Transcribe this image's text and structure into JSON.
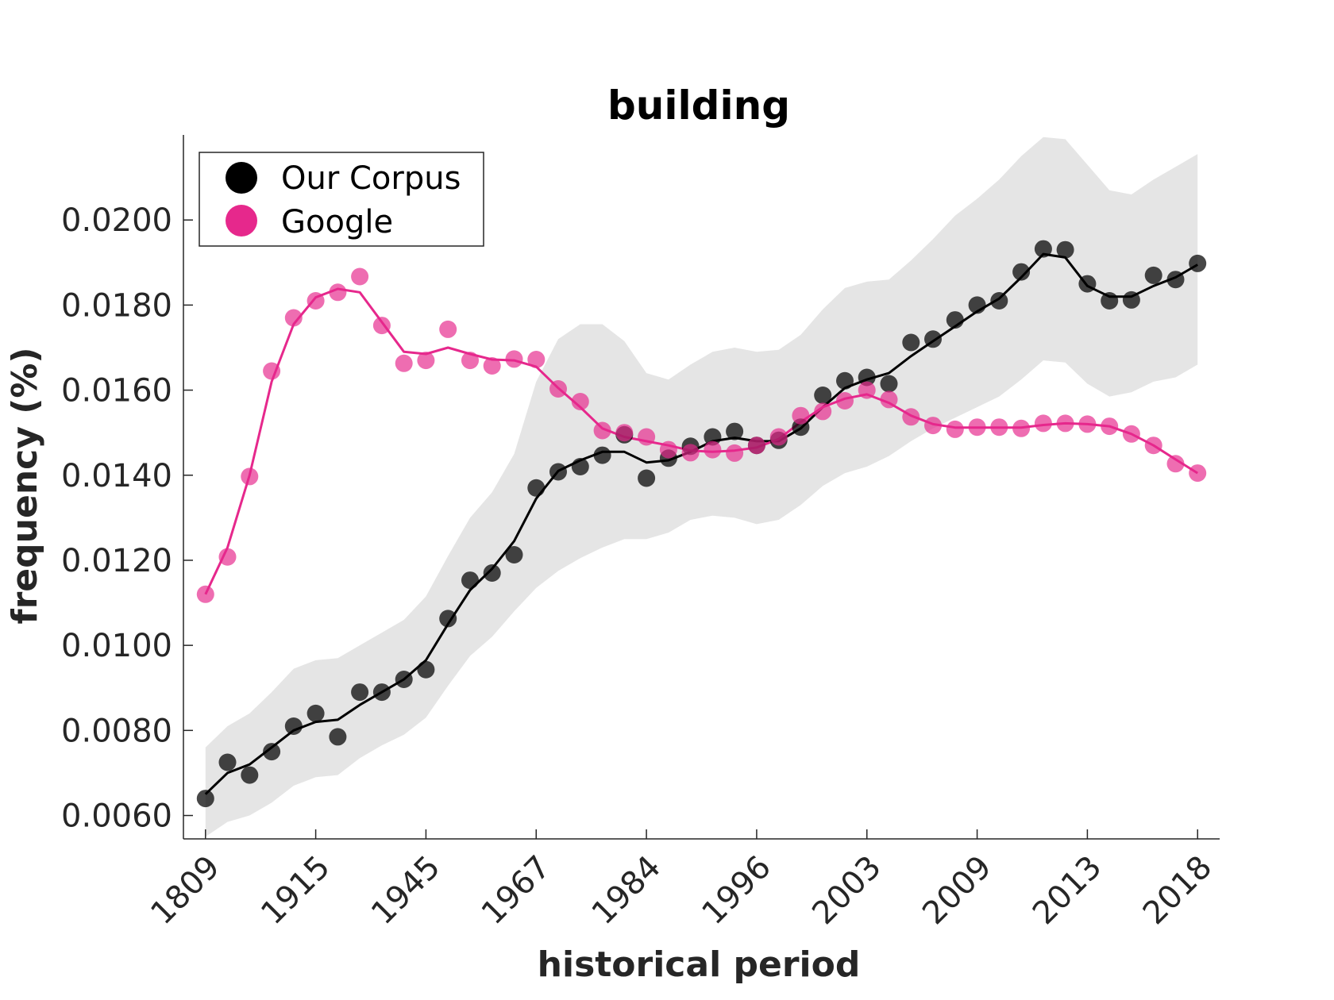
{
  "chart_data": {
    "type": "line",
    "title": "building",
    "xlabel": "historical period",
    "ylabel": "frequency (%)",
    "x_tick_labels": [
      "1809",
      "1915",
      "1945",
      "1967",
      "1984",
      "1996",
      "2003",
      "2009",
      "2013",
      "2018"
    ],
    "x_tick_positions": [
      0,
      5,
      10,
      15,
      20,
      25,
      30,
      35,
      40,
      45
    ],
    "xlim": [
      -1,
      46
    ],
    "y_tick_labels": [
      "0.0060",
      "0.0080",
      "0.0100",
      "0.0120",
      "0.0140",
      "0.0160",
      "0.0180",
      "0.0200"
    ],
    "y_ticks": [
      0.006,
      0.008,
      0.01,
      0.012,
      0.014,
      0.016,
      0.018,
      0.02
    ],
    "ylim": [
      0.00545,
      0.022
    ],
    "legend_position": "top-left",
    "x": [
      0,
      1,
      2,
      3,
      4,
      5,
      6,
      7,
      8,
      9,
      10,
      11,
      12,
      13,
      14,
      15,
      16,
      17,
      18,
      19,
      20,
      21,
      22,
      23,
      24,
      25,
      26,
      27,
      28,
      29,
      30,
      31,
      32,
      33,
      34,
      35,
      36,
      37,
      38,
      39,
      40,
      41,
      42,
      43,
      44,
      45
    ],
    "series": [
      {
        "name": "Our Corpus",
        "color": "#000000",
        "points": [
          0.0064,
          0.00725,
          0.00695,
          0.0075,
          0.0081,
          0.0084,
          0.00785,
          0.0089,
          0.0089,
          0.0092,
          0.00943,
          0.01063,
          0.01153,
          0.0117,
          0.01213,
          0.0137,
          0.01408,
          0.0142,
          0.01447,
          0.01495,
          0.01393,
          0.0144,
          0.01468,
          0.0149,
          0.01503,
          0.0147,
          0.01482,
          0.01513,
          0.01588,
          0.01622,
          0.0163,
          0.01615,
          0.01712,
          0.0172,
          0.01765,
          0.018,
          0.0181,
          0.01878,
          0.01932,
          0.0193,
          0.0185,
          0.0181,
          0.01812,
          0.0187,
          0.0186,
          0.01898
        ],
        "smooth": [
          0.0065,
          0.007,
          0.0072,
          0.0076,
          0.008,
          0.0082,
          0.00825,
          0.0086,
          0.0089,
          0.0092,
          0.00965,
          0.0105,
          0.0113,
          0.0118,
          0.01245,
          0.01345,
          0.0141,
          0.01435,
          0.01455,
          0.01455,
          0.0143,
          0.01435,
          0.01455,
          0.0148,
          0.01488,
          0.0148,
          0.0148,
          0.0151,
          0.0156,
          0.01605,
          0.01625,
          0.0164,
          0.0168,
          0.01715,
          0.0175,
          0.01785,
          0.01815,
          0.01865,
          0.0192,
          0.01912,
          0.01845,
          0.0182,
          0.0182,
          0.01845,
          0.01865,
          0.01895
        ],
        "band_upper": [
          0.0076,
          0.0081,
          0.0084,
          0.0089,
          0.00945,
          0.00965,
          0.0097,
          0.01,
          0.0103,
          0.0106,
          0.01115,
          0.0121,
          0.013,
          0.0136,
          0.0145,
          0.0162,
          0.0172,
          0.01755,
          0.01755,
          0.01715,
          0.0164,
          0.01625,
          0.0166,
          0.0169,
          0.017,
          0.0169,
          0.01695,
          0.0173,
          0.0179,
          0.0184,
          0.01855,
          0.0186,
          0.01905,
          0.01955,
          0.0201,
          0.0205,
          0.02095,
          0.0215,
          0.02195,
          0.0219,
          0.0213,
          0.0207,
          0.0206,
          0.02095,
          0.02125,
          0.02155
        ],
        "band_lower": [
          0.0055,
          0.00585,
          0.006,
          0.0063,
          0.0067,
          0.0069,
          0.00695,
          0.00735,
          0.00765,
          0.0079,
          0.0083,
          0.00905,
          0.00975,
          0.0102,
          0.0108,
          0.01135,
          0.01175,
          0.01205,
          0.0123,
          0.0125,
          0.0125,
          0.01265,
          0.01295,
          0.01305,
          0.013,
          0.01285,
          0.01295,
          0.0133,
          0.01375,
          0.01405,
          0.0142,
          0.01445,
          0.0148,
          0.0151,
          0.01535,
          0.0156,
          0.01585,
          0.01625,
          0.0167,
          0.01665,
          0.01615,
          0.01585,
          0.01595,
          0.0162,
          0.0163,
          0.0166
        ]
      },
      {
        "name": "Google",
        "color": "#e6288c",
        "points": [
          0.0112,
          0.01208,
          0.01397,
          0.01645,
          0.0177,
          0.0181,
          0.0183,
          0.01867,
          0.01752,
          0.01663,
          0.0167,
          0.01743,
          0.0167,
          0.01657,
          0.01673,
          0.01672,
          0.01603,
          0.01573,
          0.01505,
          0.015,
          0.0149,
          0.0146,
          0.01453,
          0.0146,
          0.01452,
          0.0147,
          0.0149,
          0.0154,
          0.0155,
          0.01575,
          0.016,
          0.01578,
          0.01537,
          0.01517,
          0.01508,
          0.01513,
          0.01513,
          0.0151,
          0.01522,
          0.01522,
          0.0152,
          0.01515,
          0.01497,
          0.0147,
          0.01427,
          0.01405
        ],
        "smooth": [
          0.0112,
          0.0123,
          0.014,
          0.0162,
          0.01755,
          0.01818,
          0.01838,
          0.0183,
          0.0176,
          0.0169,
          0.01685,
          0.017,
          0.01685,
          0.01672,
          0.0167,
          0.01655,
          0.01605,
          0.0156,
          0.0151,
          0.0149,
          0.0148,
          0.0147,
          0.01458,
          0.01455,
          0.01458,
          0.01465,
          0.01485,
          0.01525,
          0.0156,
          0.0158,
          0.0159,
          0.0157,
          0.0154,
          0.0152,
          0.01512,
          0.01512,
          0.01512,
          0.01512,
          0.01518,
          0.01522,
          0.0152,
          0.01515,
          0.01497,
          0.0147,
          0.01437,
          0.01405
        ]
      }
    ]
  }
}
